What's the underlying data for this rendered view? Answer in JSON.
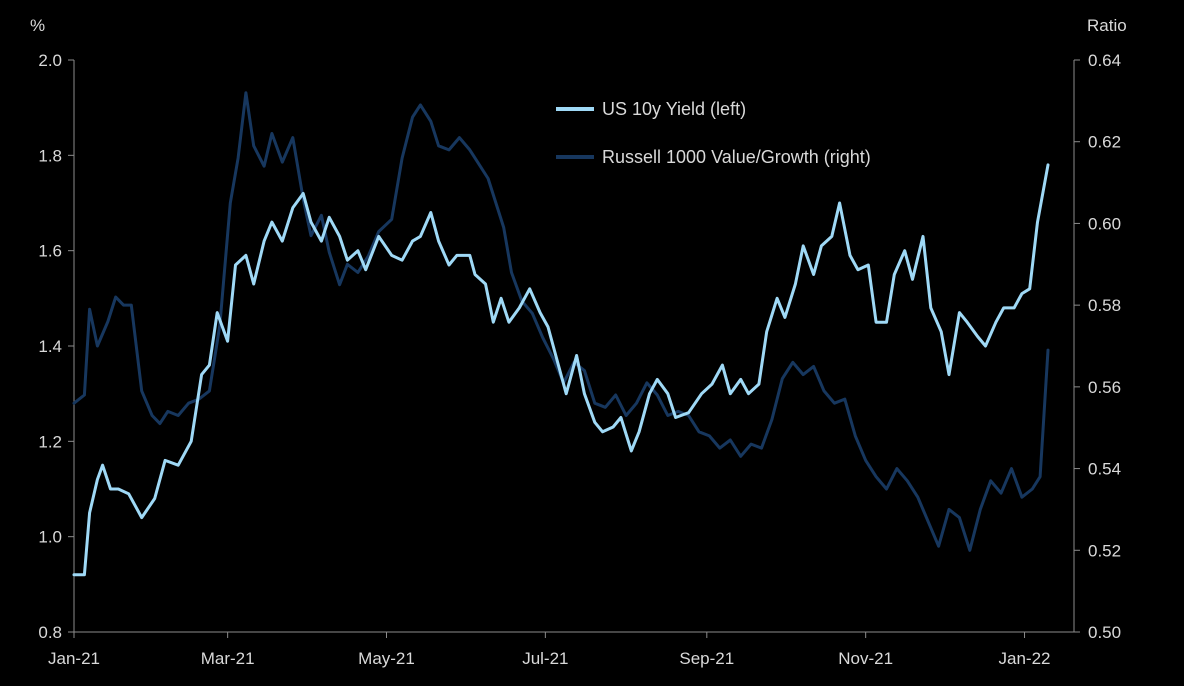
{
  "chart_data": {
    "type": "line",
    "x_axis": {
      "type": "date",
      "range": [
        "2021-01-01",
        "2022-01-20"
      ],
      "tick_labels": [
        "Jan-21",
        "Mar-21",
        "May-21",
        "Jul-21",
        "Sep-21",
        "Nov-21",
        "Jan-22"
      ],
      "tick_dates": [
        "2021-01-01",
        "2021-03-01",
        "2021-05-01",
        "2021-07-01",
        "2021-09-01",
        "2021-11-01",
        "2022-01-01"
      ]
    },
    "y_left": {
      "label": "%",
      "range": [
        0.8,
        2.0
      ],
      "ticks": [
        0.8,
        1.0,
        1.2,
        1.4,
        1.6,
        1.8,
        2.0
      ],
      "tick_labels": [
        "0.8",
        "1.0",
        "1.2",
        "1.4",
        "1.6",
        "1.8",
        "2.0"
      ]
    },
    "y_right": {
      "label": "Ratio",
      "range": [
        0.5,
        0.64
      ],
      "ticks": [
        0.5,
        0.52,
        0.54,
        0.56,
        0.58,
        0.6,
        0.62,
        0.64
      ],
      "tick_labels": [
        "0.50",
        "0.52",
        "0.54",
        "0.56",
        "0.58",
        "0.60",
        "0.62",
        "0.64"
      ]
    },
    "grid": false,
    "legend_position": "top-center",
    "series": [
      {
        "name": "US 10y Yield (left)",
        "axis": "left",
        "color": "#9fd9f6",
        "points": [
          [
            "2021-01-01",
            0.92
          ],
          [
            "2021-01-05",
            0.92
          ],
          [
            "2021-01-07",
            1.05
          ],
          [
            "2021-01-10",
            1.12
          ],
          [
            "2021-01-12",
            1.15
          ],
          [
            "2021-01-15",
            1.1
          ],
          [
            "2021-01-18",
            1.1
          ],
          [
            "2021-01-22",
            1.09
          ],
          [
            "2021-01-27",
            1.04
          ],
          [
            "2021-02-01",
            1.08
          ],
          [
            "2021-02-05",
            1.16
          ],
          [
            "2021-02-10",
            1.15
          ],
          [
            "2021-02-15",
            1.2
          ],
          [
            "2021-02-19",
            1.34
          ],
          [
            "2021-02-22",
            1.36
          ],
          [
            "2021-02-25",
            1.47
          ],
          [
            "2021-03-01",
            1.41
          ],
          [
            "2021-03-04",
            1.57
          ],
          [
            "2021-03-08",
            1.59
          ],
          [
            "2021-03-11",
            1.53
          ],
          [
            "2021-03-15",
            1.62
          ],
          [
            "2021-03-18",
            1.66
          ],
          [
            "2021-03-22",
            1.62
          ],
          [
            "2021-03-26",
            1.69
          ],
          [
            "2021-03-30",
            1.72
          ],
          [
            "2021-04-02",
            1.66
          ],
          [
            "2021-04-06",
            1.62
          ],
          [
            "2021-04-09",
            1.67
          ],
          [
            "2021-04-13",
            1.63
          ],
          [
            "2021-04-16",
            1.58
          ],
          [
            "2021-04-20",
            1.6
          ],
          [
            "2021-04-23",
            1.56
          ],
          [
            "2021-04-28",
            1.63
          ],
          [
            "2021-05-03",
            1.59
          ],
          [
            "2021-05-07",
            1.58
          ],
          [
            "2021-05-11",
            1.62
          ],
          [
            "2021-05-14",
            1.63
          ],
          [
            "2021-05-18",
            1.68
          ],
          [
            "2021-05-21",
            1.62
          ],
          [
            "2021-05-25",
            1.57
          ],
          [
            "2021-05-28",
            1.59
          ],
          [
            "2021-06-02",
            1.59
          ],
          [
            "2021-06-04",
            1.55
          ],
          [
            "2021-06-08",
            1.53
          ],
          [
            "2021-06-11",
            1.45
          ],
          [
            "2021-06-14",
            1.5
          ],
          [
            "2021-06-17",
            1.45
          ],
          [
            "2021-06-21",
            1.48
          ],
          [
            "2021-06-25",
            1.52
          ],
          [
            "2021-06-29",
            1.47
          ],
          [
            "2021-07-02",
            1.44
          ],
          [
            "2021-07-06",
            1.36
          ],
          [
            "2021-07-09",
            1.3
          ],
          [
            "2021-07-13",
            1.38
          ],
          [
            "2021-07-16",
            1.3
          ],
          [
            "2021-07-20",
            1.24
          ],
          [
            "2021-07-23",
            1.22
          ],
          [
            "2021-07-27",
            1.23
          ],
          [
            "2021-07-30",
            1.25
          ],
          [
            "2021-08-03",
            1.18
          ],
          [
            "2021-08-06",
            1.22
          ],
          [
            "2021-08-10",
            1.3
          ],
          [
            "2021-08-13",
            1.33
          ],
          [
            "2021-08-17",
            1.3
          ],
          [
            "2021-08-20",
            1.25
          ],
          [
            "2021-08-25",
            1.26
          ],
          [
            "2021-08-30",
            1.3
          ],
          [
            "2021-09-03",
            1.32
          ],
          [
            "2021-09-07",
            1.36
          ],
          [
            "2021-09-10",
            1.3
          ],
          [
            "2021-09-14",
            1.33
          ],
          [
            "2021-09-17",
            1.3
          ],
          [
            "2021-09-21",
            1.32
          ],
          [
            "2021-09-24",
            1.43
          ],
          [
            "2021-09-28",
            1.5
          ],
          [
            "2021-10-01",
            1.46
          ],
          [
            "2021-10-05",
            1.53
          ],
          [
            "2021-10-08",
            1.61
          ],
          [
            "2021-10-12",
            1.55
          ],
          [
            "2021-10-15",
            1.61
          ],
          [
            "2021-10-19",
            1.63
          ],
          [
            "2021-10-22",
            1.7
          ],
          [
            "2021-10-26",
            1.59
          ],
          [
            "2021-10-29",
            1.56
          ],
          [
            "2021-11-02",
            1.57
          ],
          [
            "2021-11-05",
            1.45
          ],
          [
            "2021-11-09",
            1.45
          ],
          [
            "2021-11-12",
            1.55
          ],
          [
            "2021-11-16",
            1.6
          ],
          [
            "2021-11-19",
            1.54
          ],
          [
            "2021-11-23",
            1.63
          ],
          [
            "2021-11-26",
            1.48
          ],
          [
            "2021-11-30",
            1.43
          ],
          [
            "2021-12-03",
            1.34
          ],
          [
            "2021-12-07",
            1.47
          ],
          [
            "2021-12-10",
            1.45
          ],
          [
            "2021-12-14",
            1.42
          ],
          [
            "2021-12-17",
            1.4
          ],
          [
            "2021-12-21",
            1.45
          ],
          [
            "2021-12-24",
            1.48
          ],
          [
            "2021-12-28",
            1.48
          ],
          [
            "2021-12-31",
            1.51
          ],
          [
            "2022-01-03",
            1.52
          ],
          [
            "2022-01-06",
            1.66
          ],
          [
            "2022-01-10",
            1.78
          ]
        ]
      },
      {
        "name": "Russell 1000 Value/Growth (right)",
        "axis": "right",
        "color": "#17375e",
        "points": [
          [
            "2021-01-01",
            0.556
          ],
          [
            "2021-01-05",
            0.558
          ],
          [
            "2021-01-07",
            0.579
          ],
          [
            "2021-01-10",
            0.57
          ],
          [
            "2021-01-14",
            0.576
          ],
          [
            "2021-01-17",
            0.582
          ],
          [
            "2021-01-20",
            0.58
          ],
          [
            "2021-01-23",
            0.58
          ],
          [
            "2021-01-27",
            0.559
          ],
          [
            "2021-01-31",
            0.553
          ],
          [
            "2021-02-03",
            0.551
          ],
          [
            "2021-02-06",
            0.554
          ],
          [
            "2021-02-10",
            0.553
          ],
          [
            "2021-02-14",
            0.556
          ],
          [
            "2021-02-18",
            0.557
          ],
          [
            "2021-02-22",
            0.559
          ],
          [
            "2021-02-26",
            0.575
          ],
          [
            "2021-03-02",
            0.605
          ],
          [
            "2021-03-05",
            0.616
          ],
          [
            "2021-03-08",
            0.632
          ],
          [
            "2021-03-11",
            0.619
          ],
          [
            "2021-03-15",
            0.614
          ],
          [
            "2021-03-18",
            0.622
          ],
          [
            "2021-03-22",
            0.615
          ],
          [
            "2021-03-26",
            0.621
          ],
          [
            "2021-03-30",
            0.606
          ],
          [
            "2021-04-02",
            0.597
          ],
          [
            "2021-04-06",
            0.602
          ],
          [
            "2021-04-09",
            0.593
          ],
          [
            "2021-04-13",
            0.585
          ],
          [
            "2021-04-16",
            0.59
          ],
          [
            "2021-04-20",
            0.588
          ],
          [
            "2021-04-24",
            0.592
          ],
          [
            "2021-04-28",
            0.598
          ],
          [
            "2021-05-03",
            0.601
          ],
          [
            "2021-05-07",
            0.616
          ],
          [
            "2021-05-11",
            0.626
          ],
          [
            "2021-05-14",
            0.629
          ],
          [
            "2021-05-18",
            0.625
          ],
          [
            "2021-05-21",
            0.619
          ],
          [
            "2021-05-25",
            0.618
          ],
          [
            "2021-05-29",
            0.621
          ],
          [
            "2021-06-02",
            0.618
          ],
          [
            "2021-06-05",
            0.615
          ],
          [
            "2021-06-09",
            0.611
          ],
          [
            "2021-06-12",
            0.605
          ],
          [
            "2021-06-15",
            0.599
          ],
          [
            "2021-06-18",
            0.588
          ],
          [
            "2021-06-22",
            0.581
          ],
          [
            "2021-06-26",
            0.578
          ],
          [
            "2021-06-30",
            0.572
          ],
          [
            "2021-07-04",
            0.567
          ],
          [
            "2021-07-08",
            0.561
          ],
          [
            "2021-07-12",
            0.566
          ],
          [
            "2021-07-16",
            0.564
          ],
          [
            "2021-07-20",
            0.556
          ],
          [
            "2021-07-24",
            0.555
          ],
          [
            "2021-07-28",
            0.558
          ],
          [
            "2021-08-01",
            0.553
          ],
          [
            "2021-08-05",
            0.556
          ],
          [
            "2021-08-09",
            0.561
          ],
          [
            "2021-08-13",
            0.558
          ],
          [
            "2021-08-17",
            0.553
          ],
          [
            "2021-08-21",
            0.554
          ],
          [
            "2021-08-25",
            0.553
          ],
          [
            "2021-08-29",
            0.549
          ],
          [
            "2021-09-02",
            0.548
          ],
          [
            "2021-09-06",
            0.545
          ],
          [
            "2021-09-10",
            0.547
          ],
          [
            "2021-09-14",
            0.543
          ],
          [
            "2021-09-18",
            0.546
          ],
          [
            "2021-09-22",
            0.545
          ],
          [
            "2021-09-26",
            0.552
          ],
          [
            "2021-09-30",
            0.562
          ],
          [
            "2021-10-04",
            0.566
          ],
          [
            "2021-10-08",
            0.563
          ],
          [
            "2021-10-12",
            0.565
          ],
          [
            "2021-10-16",
            0.559
          ],
          [
            "2021-10-20",
            0.556
          ],
          [
            "2021-10-24",
            0.557
          ],
          [
            "2021-10-28",
            0.548
          ],
          [
            "2021-11-01",
            0.542
          ],
          [
            "2021-11-05",
            0.538
          ],
          [
            "2021-11-09",
            0.535
          ],
          [
            "2021-11-13",
            0.54
          ],
          [
            "2021-11-17",
            0.537
          ],
          [
            "2021-11-21",
            0.533
          ],
          [
            "2021-11-25",
            0.527
          ],
          [
            "2021-11-29",
            0.521
          ],
          [
            "2021-12-03",
            0.53
          ],
          [
            "2021-12-07",
            0.528
          ],
          [
            "2021-12-11",
            0.52
          ],
          [
            "2021-12-15",
            0.53
          ],
          [
            "2021-12-19",
            0.537
          ],
          [
            "2021-12-23",
            0.534
          ],
          [
            "2021-12-27",
            0.54
          ],
          [
            "2021-12-31",
            0.533
          ],
          [
            "2022-01-04",
            0.535
          ],
          [
            "2022-01-07",
            0.538
          ],
          [
            "2022-01-10",
            0.569
          ]
        ]
      }
    ]
  }
}
